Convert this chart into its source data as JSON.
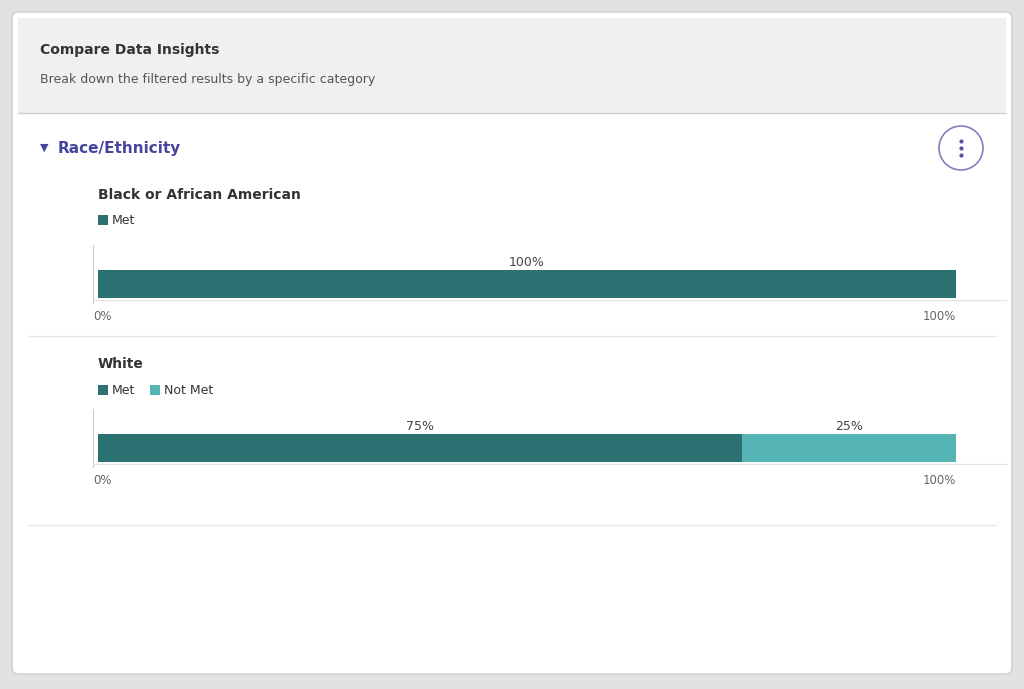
{
  "header_title": "Compare Data Insights",
  "header_subtitle": "Break down the filtered results by a specific category",
  "section_title": "Race/Ethnicity",
  "section_title_color": "#4545a0",
  "card_bg": "#ffffff",
  "header_bg": "#f0f0f0",
  "outer_bg": "#e2e2e2",
  "met_color": "#2d7272",
  "not_met_color": "#55b5b5",
  "groups": [
    {
      "label": "Black or African American",
      "legend": [
        {
          "text": "Met",
          "color": "#2d7272"
        }
      ],
      "bars": [
        {
          "value": 1.0,
          "color": "#2d7272",
          "pct_label": "100%"
        }
      ]
    },
    {
      "label": "White",
      "legend": [
        {
          "text": "Met",
          "color": "#2d7272"
        },
        {
          "text": "Not Met",
          "color": "#55b5b5"
        }
      ],
      "bars": [
        {
          "value": 0.75,
          "color": "#2d7272",
          "pct_label": "75%"
        },
        {
          "value": 0.25,
          "color": "#55b5b5",
          "pct_label": "25%"
        }
      ]
    }
  ],
  "label_fontsize": 10,
  "legend_fontsize": 9,
  "pct_fontsize": 9,
  "axis_fontsize": 8.5,
  "header_title_fontsize": 10,
  "header_subtitle_fontsize": 9,
  "section_fontsize": 11
}
